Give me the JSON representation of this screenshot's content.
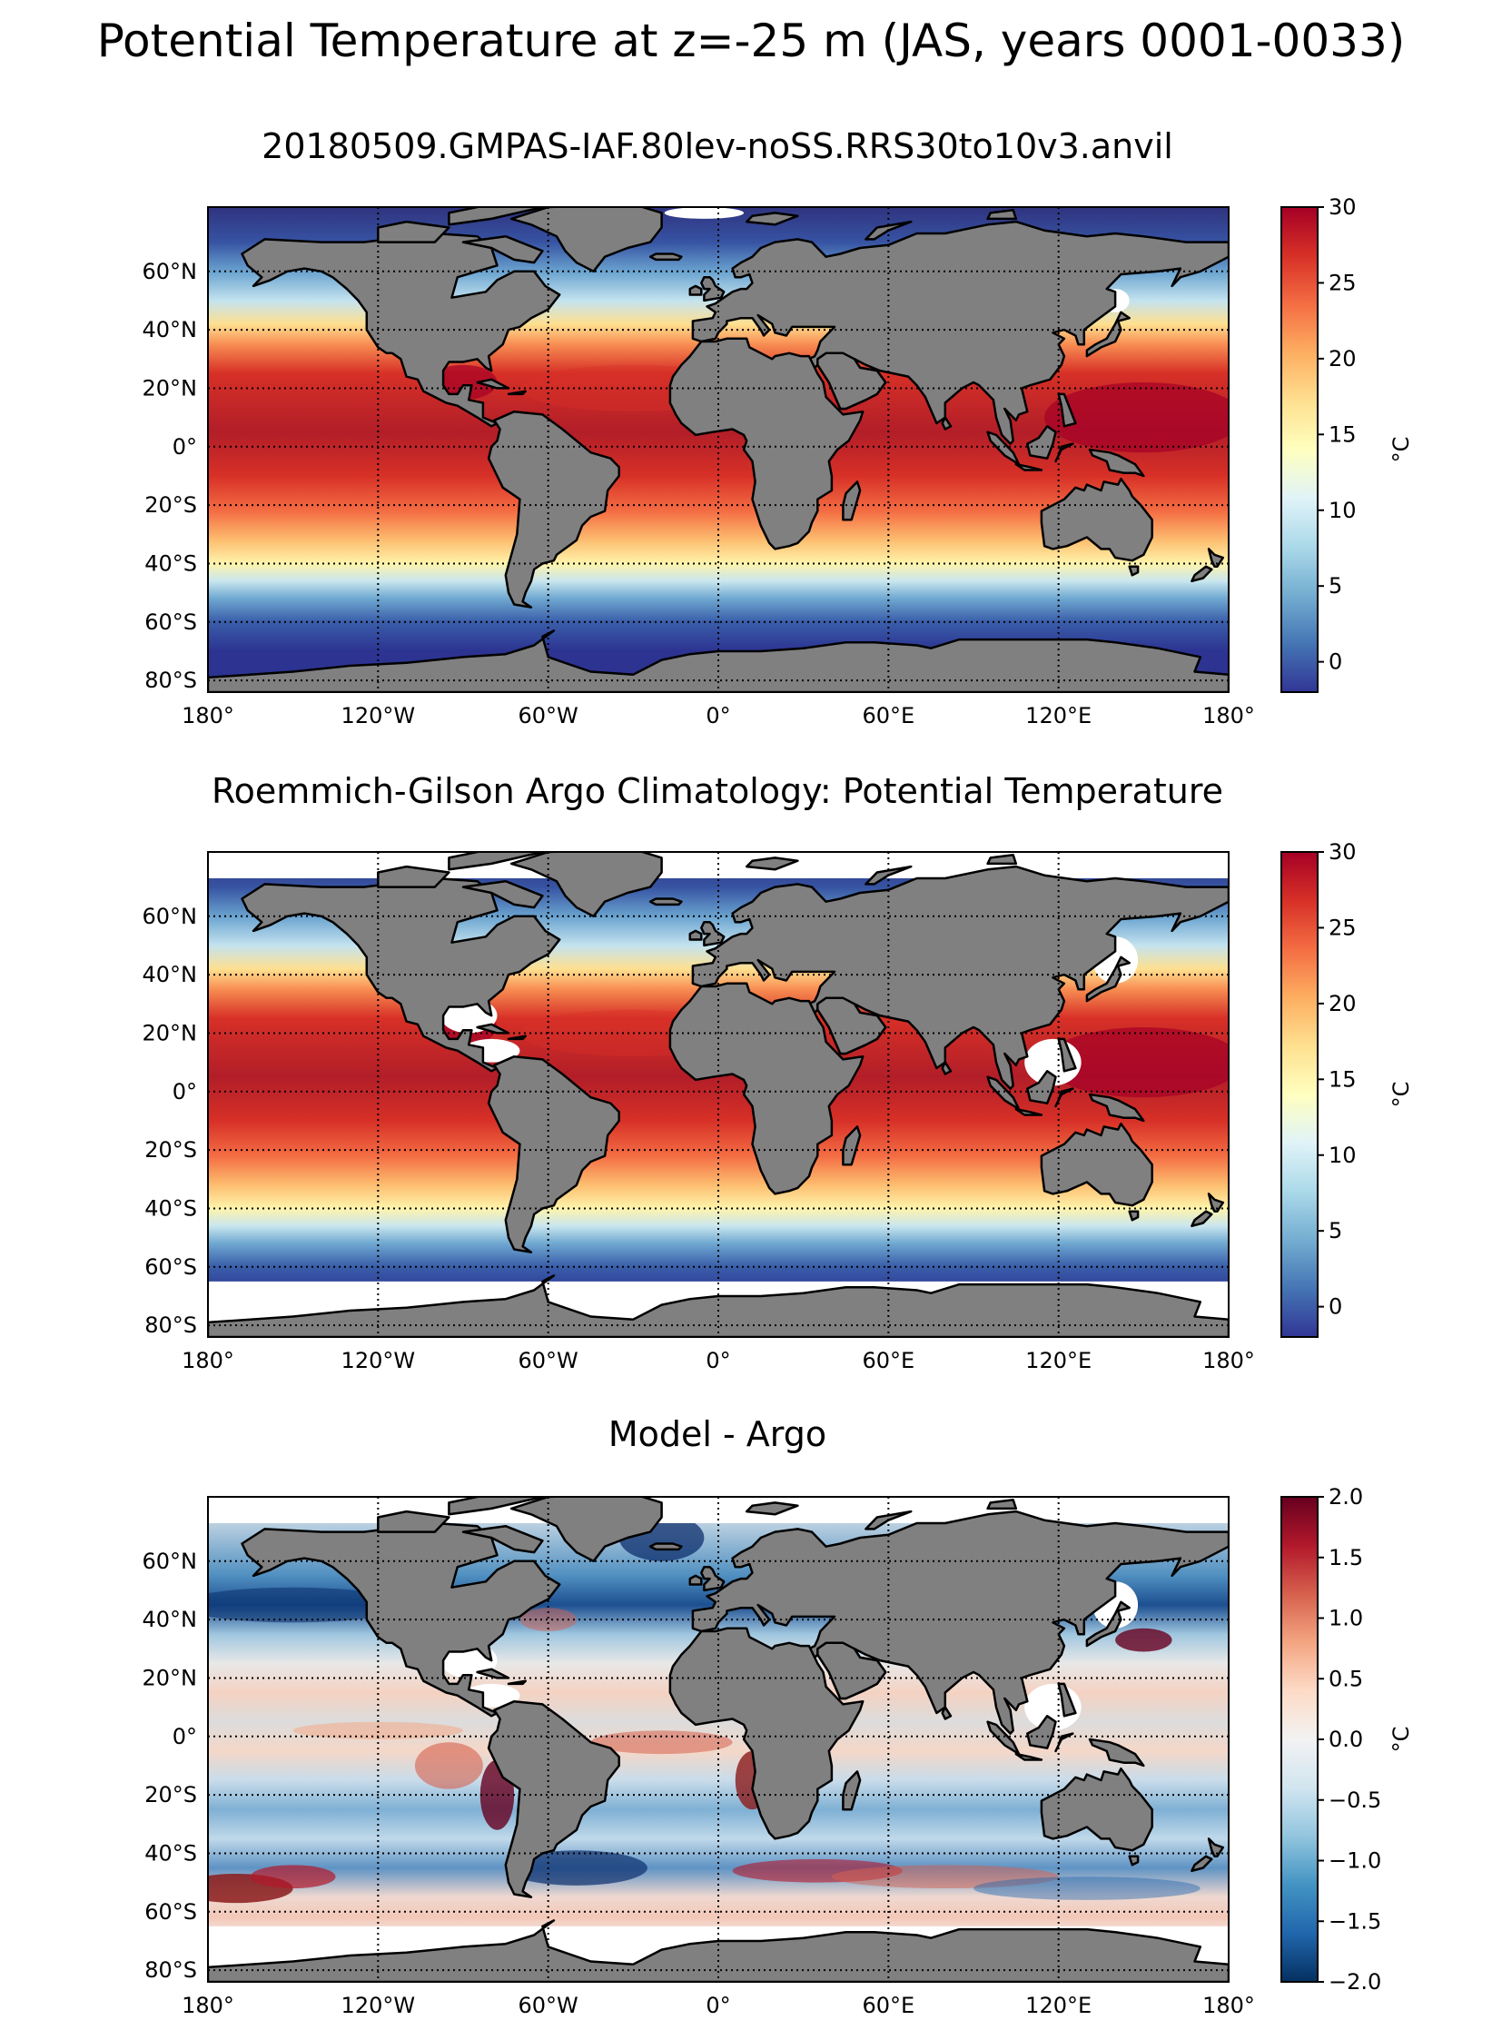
{
  "figure": {
    "suptitle": "Potential Temperature at z=-25 m (JAS, years 0001-0033)",
    "land_color": "#808080",
    "missing_color": "#ffffff",
    "grid_style": "dotted black, every 60° longitude and 20° latitude"
  },
  "axes": {
    "lon_ticks": [
      "180°",
      "120°W",
      "60°W",
      "0°",
      "60°E",
      "120°E",
      "180°"
    ],
    "lat_ticks": [
      "60°N",
      "40°N",
      "20°N",
      "0°",
      "20°S",
      "40°S",
      "60°S",
      "80°S"
    ]
  },
  "panels": [
    {
      "title": "20180509.GMPAS-IAF.80lev-noSS.RRS30to10v3.anvil",
      "colormap": "RdYlBu_r",
      "colorbar": {
        "label": "°C",
        "range": [
          -2,
          30
        ],
        "ticks": [
          "30",
          "25",
          "20",
          "15",
          "10",
          "5",
          "0"
        ]
      },
      "mask": "model"
    },
    {
      "title": "Roemmich-Gilson Argo Climatology: Potential Temperature",
      "colormap": "RdYlBu_r",
      "colorbar": {
        "label": "°C",
        "range": [
          -2,
          30
        ],
        "ticks": [
          "30",
          "25",
          "20",
          "15",
          "10",
          "5",
          "0"
        ]
      },
      "mask": "argo"
    },
    {
      "title": "Model - Argo",
      "colormap": "RdBu_r (diverging)",
      "colorbar": {
        "label": "°C",
        "range": [
          -2,
          2
        ],
        "ticks": [
          "2.0",
          "1.5",
          "1.0",
          "0.5",
          "0.0",
          "−0.5",
          "−1.0",
          "−1.5",
          "−2.0"
        ]
      },
      "mask": "argo"
    }
  ]
}
